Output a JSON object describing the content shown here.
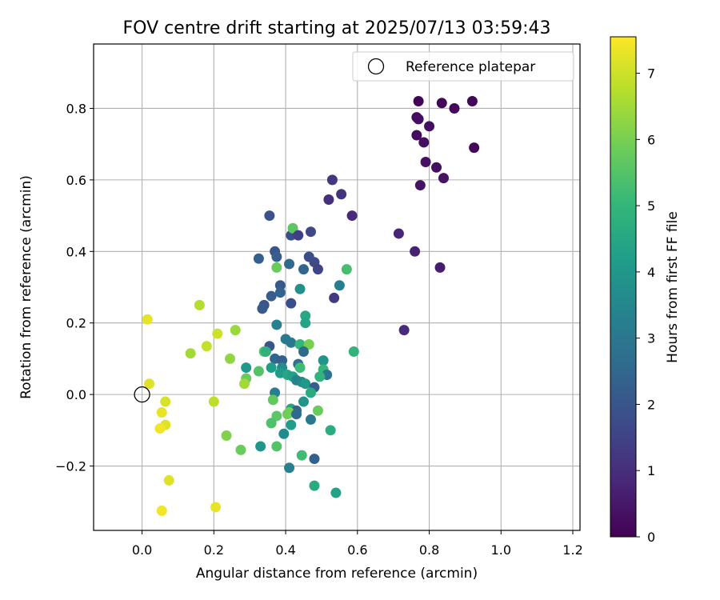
{
  "chart_data": {
    "type": "scatter",
    "title": "FOV centre drift starting at 2025/07/13 03:59:43",
    "xlabel": "Angular distance from reference (arcmin)",
    "ylabel": "Rotation from reference (arcmin)",
    "xlim": [
      -0.135,
      1.22
    ],
    "ylim": [
      -0.38,
      0.98
    ],
    "xticks": [
      0.0,
      0.2,
      0.4,
      0.6,
      0.8,
      1.0,
      1.2
    ],
    "xtick_labels": [
      "0.0",
      "0.2",
      "0.4",
      "0.6",
      "0.8",
      "1.0",
      "1.2"
    ],
    "yticks": [
      -0.2,
      0.0,
      0.2,
      0.4,
      0.6,
      0.8
    ],
    "ytick_labels": [
      "−0.2",
      "0.0",
      "0.2",
      "0.4",
      "0.6",
      "0.8"
    ],
    "grid": true,
    "legend": {
      "placement": "top-right",
      "entries": [
        "Reference platepar"
      ]
    },
    "reference_point": {
      "x": 0.0,
      "y": 0.0
    },
    "colorbar": {
      "label": "Hours from first FF file",
      "min": 0,
      "max": 7.55,
      "ticks": [
        0,
        1,
        2,
        3,
        4,
        5,
        6,
        7
      ],
      "tick_labels": [
        "0",
        "1",
        "2",
        "3",
        "4",
        "5",
        "6",
        "7"
      ],
      "colormap": "viridis"
    },
    "points": [
      {
        "x": 0.77,
        "y": 0.82,
        "c": 0.05
      },
      {
        "x": 0.835,
        "y": 0.815,
        "c": 0.1
      },
      {
        "x": 0.87,
        "y": 0.8,
        "c": 0.15
      },
      {
        "x": 0.92,
        "y": 0.82,
        "c": 0.1
      },
      {
        "x": 0.765,
        "y": 0.775,
        "c": 0.2
      },
      {
        "x": 0.77,
        "y": 0.77,
        "c": 0.25
      },
      {
        "x": 0.8,
        "y": 0.75,
        "c": 0.3
      },
      {
        "x": 0.765,
        "y": 0.725,
        "c": 0.2
      },
      {
        "x": 0.785,
        "y": 0.705,
        "c": 0.3
      },
      {
        "x": 0.925,
        "y": 0.69,
        "c": 0.1
      },
      {
        "x": 0.79,
        "y": 0.65,
        "c": 0.35
      },
      {
        "x": 0.82,
        "y": 0.635,
        "c": 0.3
      },
      {
        "x": 0.84,
        "y": 0.605,
        "c": 0.4
      },
      {
        "x": 0.775,
        "y": 0.585,
        "c": 0.4
      },
      {
        "x": 0.53,
        "y": 0.6,
        "c": 1.2
      },
      {
        "x": 0.555,
        "y": 0.56,
        "c": 1.1
      },
      {
        "x": 0.52,
        "y": 0.545,
        "c": 1.0
      },
      {
        "x": 0.585,
        "y": 0.5,
        "c": 0.9
      },
      {
        "x": 0.355,
        "y": 0.5,
        "c": 1.9
      },
      {
        "x": 0.415,
        "y": 0.445,
        "c": 1.8
      },
      {
        "x": 0.42,
        "y": 0.465,
        "c": 5.6
      },
      {
        "x": 0.435,
        "y": 0.445,
        "c": 1.4
      },
      {
        "x": 0.47,
        "y": 0.455,
        "c": 1.6
      },
      {
        "x": 0.715,
        "y": 0.45,
        "c": 0.8
      },
      {
        "x": 0.76,
        "y": 0.4,
        "c": 0.7
      },
      {
        "x": 0.37,
        "y": 0.4,
        "c": 2.0
      },
      {
        "x": 0.325,
        "y": 0.38,
        "c": 2.3
      },
      {
        "x": 0.375,
        "y": 0.385,
        "c": 2.2
      },
      {
        "x": 0.465,
        "y": 0.385,
        "c": 1.8
      },
      {
        "x": 0.48,
        "y": 0.37,
        "c": 1.7
      },
      {
        "x": 0.375,
        "y": 0.355,
        "c": 5.8
      },
      {
        "x": 0.41,
        "y": 0.365,
        "c": 2.6
      },
      {
        "x": 0.45,
        "y": 0.35,
        "c": 2.5
      },
      {
        "x": 0.49,
        "y": 0.35,
        "c": 1.5
      },
      {
        "x": 0.57,
        "y": 0.35,
        "c": 5.3
      },
      {
        "x": 0.83,
        "y": 0.355,
        "c": 0.6
      },
      {
        "x": 0.385,
        "y": 0.305,
        "c": 2.1
      },
      {
        "x": 0.44,
        "y": 0.295,
        "c": 3.8
      },
      {
        "x": 0.55,
        "y": 0.305,
        "c": 3.2
      },
      {
        "x": 0.36,
        "y": 0.275,
        "c": 2.2
      },
      {
        "x": 0.385,
        "y": 0.285,
        "c": 2.4
      },
      {
        "x": 0.535,
        "y": 0.27,
        "c": 1.3
      },
      {
        "x": 0.34,
        "y": 0.25,
        "c": 2.0
      },
      {
        "x": 0.335,
        "y": 0.24,
        "c": 2.1
      },
      {
        "x": 0.415,
        "y": 0.255,
        "c": 1.8
      },
      {
        "x": 0.16,
        "y": 0.25,
        "c": 6.7
      },
      {
        "x": 0.455,
        "y": 0.22,
        "c": 4.5
      },
      {
        "x": 0.015,
        "y": 0.21,
        "c": 7.3
      },
      {
        "x": 0.455,
        "y": 0.2,
        "c": 4.4
      },
      {
        "x": 0.375,
        "y": 0.195,
        "c": 3.3
      },
      {
        "x": 0.73,
        "y": 0.18,
        "c": 0.9
      },
      {
        "x": 0.21,
        "y": 0.17,
        "c": 7.0
      },
      {
        "x": 0.26,
        "y": 0.18,
        "c": 6.4
      },
      {
        "x": 0.4,
        "y": 0.155,
        "c": 3.1
      },
      {
        "x": 0.415,
        "y": 0.145,
        "c": 3.0
      },
      {
        "x": 0.18,
        "y": 0.135,
        "c": 6.9
      },
      {
        "x": 0.355,
        "y": 0.135,
        "c": 2.0
      },
      {
        "x": 0.44,
        "y": 0.14,
        "c": 5.0
      },
      {
        "x": 0.465,
        "y": 0.14,
        "c": 6.0
      },
      {
        "x": 0.135,
        "y": 0.115,
        "c": 6.5
      },
      {
        "x": 0.34,
        "y": 0.12,
        "c": 5.5
      },
      {
        "x": 0.345,
        "y": 0.12,
        "c": 4.8
      },
      {
        "x": 0.45,
        "y": 0.12,
        "c": 2.6
      },
      {
        "x": 0.59,
        "y": 0.12,
        "c": 4.9
      },
      {
        "x": 0.245,
        "y": 0.1,
        "c": 6.3
      },
      {
        "x": 0.37,
        "y": 0.1,
        "c": 2.5
      },
      {
        "x": 0.39,
        "y": 0.095,
        "c": 2.3
      },
      {
        "x": 0.505,
        "y": 0.095,
        "c": 3.9
      },
      {
        "x": 0.435,
        "y": 0.085,
        "c": 2.7
      },
      {
        "x": 0.39,
        "y": 0.075,
        "c": 3.6
      },
      {
        "x": 0.29,
        "y": 0.075,
        "c": 4.0
      },
      {
        "x": 0.36,
        "y": 0.075,
        "c": 4.2
      },
      {
        "x": 0.44,
        "y": 0.075,
        "c": 5.2
      },
      {
        "x": 0.505,
        "y": 0.07,
        "c": 5.0
      },
      {
        "x": 0.325,
        "y": 0.065,
        "c": 5.5
      },
      {
        "x": 0.385,
        "y": 0.06,
        "c": 4.1
      },
      {
        "x": 0.405,
        "y": 0.055,
        "c": 4.5
      },
      {
        "x": 0.515,
        "y": 0.055,
        "c": 2.9
      },
      {
        "x": 0.42,
        "y": 0.05,
        "c": 4.3
      },
      {
        "x": 0.495,
        "y": 0.05,
        "c": 4.9
      },
      {
        "x": 0.29,
        "y": 0.045,
        "c": 5.8
      },
      {
        "x": 0.43,
        "y": 0.04,
        "c": 3.4
      },
      {
        "x": 0.445,
        "y": 0.035,
        "c": 3.5
      },
      {
        "x": 0.455,
        "y": 0.03,
        "c": 4.0
      },
      {
        "x": 0.285,
        "y": 0.03,
        "c": 6.5
      },
      {
        "x": 0.02,
        "y": 0.03,
        "c": 7.2
      },
      {
        "x": 0.48,
        "y": 0.02,
        "c": 2.2
      },
      {
        "x": 0.47,
        "y": 0.005,
        "c": 4.6
      },
      {
        "x": 0.37,
        "y": 0.005,
        "c": 3.2
      },
      {
        "x": 0.45,
        "y": -0.02,
        "c": 3.9
      },
      {
        "x": 0.365,
        "y": -0.015,
        "c": 5.7
      },
      {
        "x": 0.065,
        "y": -0.02,
        "c": 7.1
      },
      {
        "x": 0.2,
        "y": -0.02,
        "c": 6.8
      },
      {
        "x": 0.055,
        "y": -0.05,
        "c": 7.3
      },
      {
        "x": 0.415,
        "y": -0.04,
        "c": 4.4
      },
      {
        "x": 0.43,
        "y": -0.045,
        "c": 2.4
      },
      {
        "x": 0.41,
        "y": -0.05,
        "c": 6.0
      },
      {
        "x": 0.49,
        "y": -0.045,
        "c": 5.8
      },
      {
        "x": 0.375,
        "y": -0.06,
        "c": 5.6
      },
      {
        "x": 0.405,
        "y": -0.055,
        "c": 5.9
      },
      {
        "x": 0.43,
        "y": -0.055,
        "c": 2.6
      },
      {
        "x": 0.47,
        "y": -0.07,
        "c": 3.0
      },
      {
        "x": 0.36,
        "y": -0.08,
        "c": 5.4
      },
      {
        "x": 0.065,
        "y": -0.085,
        "c": 7.2
      },
      {
        "x": 0.05,
        "y": -0.095,
        "c": 7.4
      },
      {
        "x": 0.415,
        "y": -0.085,
        "c": 4.2
      },
      {
        "x": 0.395,
        "y": -0.11,
        "c": 3.6
      },
      {
        "x": 0.525,
        "y": -0.1,
        "c": 4.7
      },
      {
        "x": 0.235,
        "y": -0.115,
        "c": 6.1
      },
      {
        "x": 0.33,
        "y": -0.145,
        "c": 3.9
      },
      {
        "x": 0.375,
        "y": -0.145,
        "c": 5.5
      },
      {
        "x": 0.275,
        "y": -0.155,
        "c": 5.8
      },
      {
        "x": 0.445,
        "y": -0.17,
        "c": 5.2
      },
      {
        "x": 0.48,
        "y": -0.18,
        "c": 2.3
      },
      {
        "x": 0.41,
        "y": -0.205,
        "c": 3.3
      },
      {
        "x": 0.075,
        "y": -0.24,
        "c": 7.2
      },
      {
        "x": 0.48,
        "y": -0.255,
        "c": 4.6
      },
      {
        "x": 0.54,
        "y": -0.275,
        "c": 4.3
      },
      {
        "x": 0.205,
        "y": -0.315,
        "c": 7.3
      },
      {
        "x": 0.055,
        "y": -0.325,
        "c": 7.4
      }
    ]
  }
}
